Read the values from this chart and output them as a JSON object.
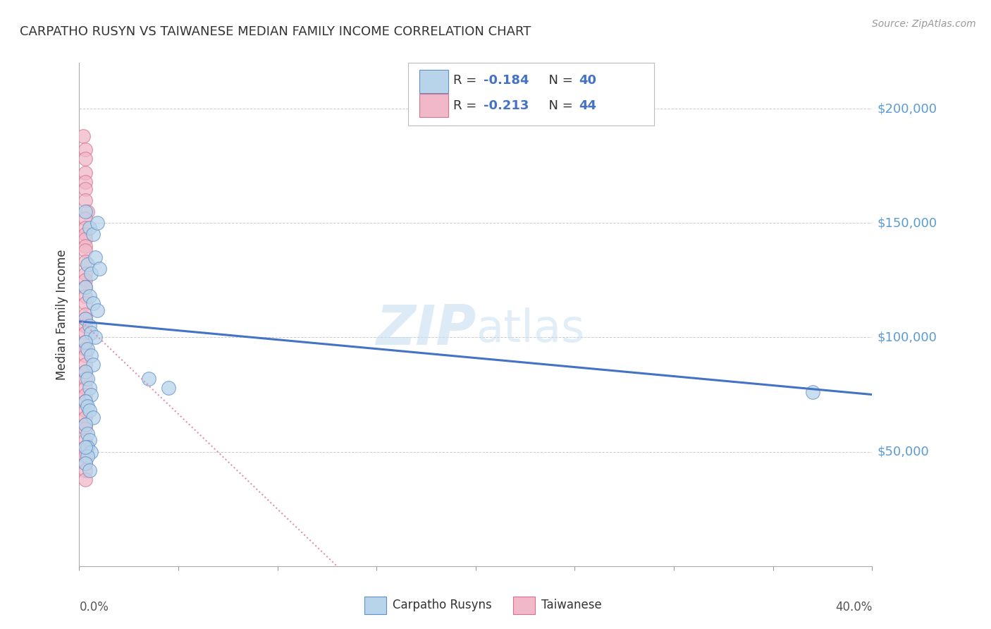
{
  "title": "CARPATHO RUSYN VS TAIWANESE MEDIAN FAMILY INCOME CORRELATION CHART",
  "source": "Source: ZipAtlas.com",
  "ylabel": "Median Family Income",
  "ytick_labels": [
    "$50,000",
    "$100,000",
    "$150,000",
    "$200,000"
  ],
  "ytick_values": [
    50000,
    100000,
    150000,
    200000
  ],
  "ymin": 0,
  "ymax": 220000,
  "xmin": 0.0,
  "xmax": 0.4,
  "color_blue_fill": "#b8d4ea",
  "color_blue_edge": "#6090c8",
  "color_pink_fill": "#f0b8c8",
  "color_pink_edge": "#d87090",
  "color_blue_line": "#4472c4",
  "color_pink_dashed": "#e090b0",
  "color_grid": "#cccccc",
  "color_ytick": "#5b9bd5",
  "blue_scatter_x": [
    0.003,
    0.005,
    0.007,
    0.009,
    0.004,
    0.006,
    0.008,
    0.01,
    0.003,
    0.005,
    0.007,
    0.009,
    0.003,
    0.005,
    0.006,
    0.008,
    0.003,
    0.004,
    0.006,
    0.007,
    0.003,
    0.004,
    0.005,
    0.006,
    0.003,
    0.004,
    0.005,
    0.007,
    0.003,
    0.004,
    0.005,
    0.045,
    0.035,
    0.004,
    0.006,
    0.004,
    0.003,
    0.005,
    0.37,
    0.003
  ],
  "blue_scatter_y": [
    155000,
    148000,
    145000,
    150000,
    132000,
    128000,
    135000,
    130000,
    122000,
    118000,
    115000,
    112000,
    108000,
    105000,
    102000,
    100000,
    98000,
    95000,
    92000,
    88000,
    85000,
    82000,
    78000,
    75000,
    72000,
    70000,
    68000,
    65000,
    62000,
    58000,
    55000,
    78000,
    82000,
    52000,
    50000,
    48000,
    45000,
    42000,
    76000,
    52000
  ],
  "pink_scatter_x": [
    0.002,
    0.003,
    0.003,
    0.003,
    0.003,
    0.003,
    0.003,
    0.004,
    0.003,
    0.003,
    0.003,
    0.003,
    0.003,
    0.003,
    0.003,
    0.003,
    0.003,
    0.003,
    0.003,
    0.003,
    0.003,
    0.003,
    0.003,
    0.003,
    0.003,
    0.003,
    0.003,
    0.003,
    0.003,
    0.003,
    0.003,
    0.003,
    0.003,
    0.003,
    0.003,
    0.003,
    0.003,
    0.003,
    0.003,
    0.003,
    0.003,
    0.003,
    0.003,
    0.003
  ],
  "pink_scatter_y": [
    188000,
    182000,
    178000,
    172000,
    168000,
    165000,
    160000,
    155000,
    152000,
    148000,
    145000,
    143000,
    140000,
    138000,
    133000,
    128000,
    125000,
    122000,
    118000,
    115000,
    110000,
    108000,
    105000,
    102000,
    98000,
    95000,
    92000,
    88000,
    85000,
    82000,
    78000,
    75000,
    72000,
    68000,
    65000,
    62000,
    60000,
    55000,
    52000,
    50000,
    48000,
    45000,
    42000,
    38000
  ],
  "blue_line_x": [
    0.0,
    0.4
  ],
  "blue_line_y": [
    107000,
    75000
  ],
  "pink_dashed_line_x": [
    0.0,
    0.13
  ],
  "pink_dashed_line_y": [
    108000,
    0
  ],
  "watermark_zip": "ZIP",
  "watermark_atlas": "atlas",
  "background_color": "#ffffff"
}
